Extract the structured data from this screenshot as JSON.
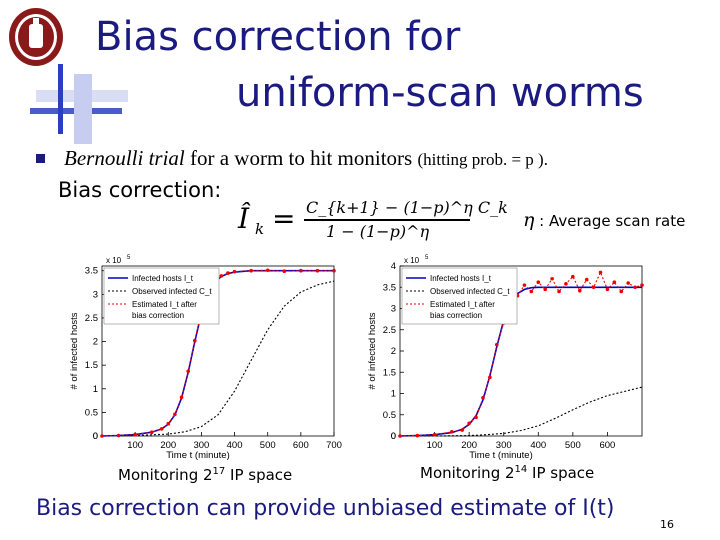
{
  "slide": {
    "title_line1": "Bias correction for",
    "title_line2": "uniform-scan worms",
    "bullet_italic": "Bernoulli trial",
    "bullet_mid": " for a worm to hit monitors ",
    "bullet_small": "(hitting prob. = p ).",
    "bias_label": "Bias correction:",
    "formula": {
      "lhs": "Î",
      "lhs_sub": "k",
      "numerator": "C_{k+1} − (1−p)^η C_k",
      "denominator": "1 − (1−p)^η"
    },
    "eta_symbol": "η",
    "eta_note": ": Average scan rate",
    "caption_left_prefix": "Monitoring 2",
    "caption_left_exp": "17",
    "caption_left_suffix": " IP space",
    "caption_right_prefix": "Monitoring 2",
    "caption_right_exp": "14",
    "caption_right_suffix": " IP space",
    "bottom_line": "Bias correction can provide unbiased estimate of I(t)",
    "page_number": "16"
  },
  "colors": {
    "title": "#1a1a80",
    "accent": "#2a3fbf",
    "infected": "#0000cc",
    "observed": "#000000",
    "estimated": "#ee0000"
  },
  "chart_data": [
    {
      "type": "line",
      "multiplier": "x 10",
      "multiplier_exp": "5",
      "xlabel": "Time t (minute)",
      "ylabel": "# of infected hosts",
      "xlim": [
        0,
        700
      ],
      "ylim": [
        0,
        3.6
      ],
      "xticks": [
        100,
        200,
        300,
        400,
        500,
        600,
        700
      ],
      "yticks": [
        0,
        0.5,
        1,
        1.5,
        2,
        2.5,
        3,
        3.5
      ],
      "legend_position": "top-left",
      "grid": false,
      "series": [
        {
          "name": "Infected hosts I_t",
          "style": "solid",
          "color": "#0000cc",
          "x": [
            0,
            50,
            100,
            150,
            180,
            200,
            220,
            240,
            260,
            280,
            300,
            320,
            340,
            360,
            380,
            400,
            450,
            500,
            550,
            600,
            650,
            700
          ],
          "y": [
            0,
            0.01,
            0.03,
            0.08,
            0.15,
            0.25,
            0.45,
            0.8,
            1.35,
            2.0,
            2.6,
            3.0,
            3.25,
            3.38,
            3.44,
            3.47,
            3.5,
            3.5,
            3.5,
            3.5,
            3.5,
            3.5
          ]
        },
        {
          "name": "Observed infected C_t",
          "style": "dotted",
          "color": "#000000",
          "x": [
            0,
            100,
            200,
            250,
            300,
            350,
            400,
            450,
            500,
            550,
            600,
            650,
            700
          ],
          "y": [
            0,
            0.01,
            0.04,
            0.09,
            0.2,
            0.45,
            0.95,
            1.6,
            2.25,
            2.75,
            3.05,
            3.2,
            3.28
          ]
        },
        {
          "name": "Estimated I_t after bias correction",
          "style": "dotted-markers",
          "color": "#ee0000",
          "x": [
            0,
            50,
            100,
            150,
            180,
            200,
            220,
            240,
            260,
            280,
            300,
            320,
            340,
            360,
            380,
            400,
            450,
            500,
            550,
            600,
            650,
            700
          ],
          "y": [
            0,
            0.01,
            0.03,
            0.08,
            0.15,
            0.26,
            0.46,
            0.82,
            1.37,
            2.02,
            2.62,
            3.02,
            3.26,
            3.39,
            3.45,
            3.48,
            3.5,
            3.51,
            3.49,
            3.5,
            3.5,
            3.5
          ]
        }
      ]
    },
    {
      "type": "line",
      "multiplier": "x 10",
      "multiplier_exp": "5",
      "xlabel": "Time t (minute)",
      "ylabel": "# of infected hosts",
      "xlim": [
        0,
        700
      ],
      "ylim": [
        0,
        4
      ],
      "xticks": [
        100,
        200,
        300,
        400,
        500,
        600
      ],
      "yticks": [
        0,
        0.5,
        1,
        1.5,
        2,
        2.5,
        3,
        3.5,
        4
      ],
      "legend_position": "top-left",
      "grid": false,
      "series": [
        {
          "name": "Infected hosts I_t",
          "style": "solid",
          "color": "#0000cc",
          "x": [
            0,
            50,
            100,
            150,
            180,
            200,
            220,
            240,
            260,
            280,
            300,
            320,
            340,
            360,
            380,
            400,
            450,
            500,
            550,
            600,
            650,
            700
          ],
          "y": [
            0,
            0.01,
            0.03,
            0.08,
            0.16,
            0.27,
            0.48,
            0.85,
            1.42,
            2.1,
            2.72,
            3.12,
            3.35,
            3.45,
            3.49,
            3.5,
            3.5,
            3.5,
            3.5,
            3.5,
            3.5,
            3.5
          ]
        },
        {
          "name": "Observed infected C_t",
          "style": "dotted",
          "color": "#000000",
          "x": [
            0,
            100,
            200,
            250,
            300,
            350,
            400,
            450,
            500,
            550,
            600,
            650,
            700
          ],
          "y": [
            0,
            0.0,
            0.01,
            0.03,
            0.06,
            0.13,
            0.24,
            0.42,
            0.62,
            0.8,
            0.95,
            1.05,
            1.15
          ]
        },
        {
          "name": "Estimated I_t after bias correction",
          "style": "dotted-markers",
          "color": "#ee0000",
          "x": [
            0,
            50,
            100,
            150,
            180,
            200,
            220,
            240,
            260,
            280,
            300,
            320,
            340,
            360,
            380,
            400,
            420,
            440,
            460,
            480,
            500,
            520,
            540,
            560,
            580,
            600,
            620,
            640,
            660,
            680,
            700
          ],
          "y": [
            0,
            0.01,
            0.03,
            0.1,
            0.14,
            0.3,
            0.44,
            0.9,
            1.38,
            2.15,
            2.66,
            3.2,
            3.3,
            3.55,
            3.4,
            3.62,
            3.45,
            3.7,
            3.4,
            3.58,
            3.75,
            3.42,
            3.68,
            3.5,
            3.85,
            3.45,
            3.62,
            3.4,
            3.6,
            3.5,
            3.55
          ]
        }
      ]
    }
  ]
}
